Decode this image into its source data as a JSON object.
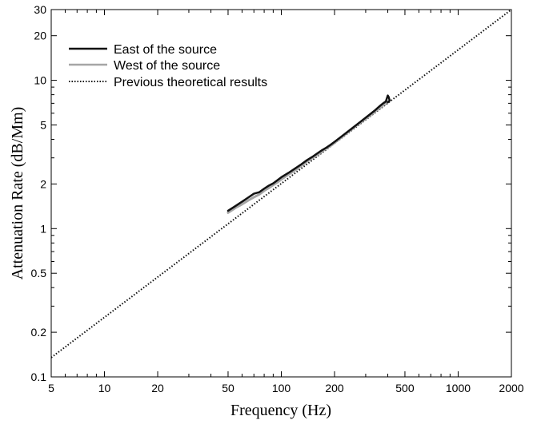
{
  "chart_data": {
    "type": "line",
    "xscale": "log",
    "yscale": "log",
    "xlabel": "Frequency (Hz)",
    "ylabel": "Attenuation Rate (dB/Mm)",
    "xlim": [
      5,
      2000
    ],
    "ylim": [
      0.1,
      30
    ],
    "grid": false,
    "legend_position": "top-left",
    "x_ticks": [
      {
        "value": 5,
        "label": "5"
      },
      {
        "value": 10,
        "label": "10"
      },
      {
        "value": 20,
        "label": "20"
      },
      {
        "value": 50,
        "label": "50"
      },
      {
        "value": 100,
        "label": "100"
      },
      {
        "value": 200,
        "label": "200"
      },
      {
        "value": 500,
        "label": "500"
      },
      {
        "value": 1000,
        "label": "1000"
      },
      {
        "value": 2000,
        "label": "2000"
      }
    ],
    "y_ticks": [
      {
        "value": 0.1,
        "label": "0.1"
      },
      {
        "value": 0.2,
        "label": "0.2"
      },
      {
        "value": 0.5,
        "label": "0.5"
      },
      {
        "value": 1,
        "label": "1"
      },
      {
        "value": 2,
        "label": "2"
      },
      {
        "value": 5,
        "label": "5"
      },
      {
        "value": 10,
        "label": "10"
      },
      {
        "value": 20,
        "label": "20"
      },
      {
        "value": 30,
        "label": "30"
      }
    ],
    "series": [
      {
        "name": "East of the source",
        "color": "#111111",
        "style": "solid",
        "x": [
          50,
          55,
          60,
          65,
          70,
          75,
          80,
          85,
          90,
          95,
          100,
          110,
          120,
          130,
          140,
          150,
          160,
          170,
          180,
          190,
          200,
          220,
          240,
          260,
          280,
          300,
          320,
          340,
          360,
          380,
          390,
          400,
          405,
          410,
          400
        ],
        "y": [
          1.32,
          1.42,
          1.52,
          1.62,
          1.72,
          1.76,
          1.86,
          1.95,
          2.02,
          2.12,
          2.22,
          2.38,
          2.55,
          2.72,
          2.9,
          3.05,
          3.22,
          3.38,
          3.52,
          3.68,
          3.85,
          4.2,
          4.55,
          4.9,
          5.25,
          5.6,
          5.95,
          6.3,
          6.7,
          7.05,
          7.2,
          7.9,
          7.7,
          7.3,
          7.1
        ]
      },
      {
        "name": "West of the source",
        "color": "#a6a6a6",
        "style": "solid",
        "x": [
          50,
          55,
          60,
          65,
          70,
          75,
          80,
          85,
          90,
          95,
          100,
          110,
          120,
          130,
          140,
          150,
          160,
          170,
          180,
          190,
          200,
          220,
          240,
          260,
          280,
          300,
          320,
          340,
          360,
          380,
          400
        ],
        "y": [
          1.28,
          1.38,
          1.46,
          1.55,
          1.63,
          1.7,
          1.8,
          1.88,
          1.97,
          2.05,
          2.15,
          2.32,
          2.48,
          2.66,
          2.84,
          3.0,
          3.15,
          3.32,
          3.48,
          3.62,
          3.8,
          4.15,
          4.5,
          4.85,
          5.2,
          5.5,
          5.85,
          6.2,
          6.5,
          6.85,
          7.2
        ]
      },
      {
        "name": "Previous theoretical results",
        "color": "#111111",
        "style": "dotted",
        "x": [
          5,
          2000
        ],
        "y": [
          0.135,
          30
        ]
      }
    ]
  }
}
